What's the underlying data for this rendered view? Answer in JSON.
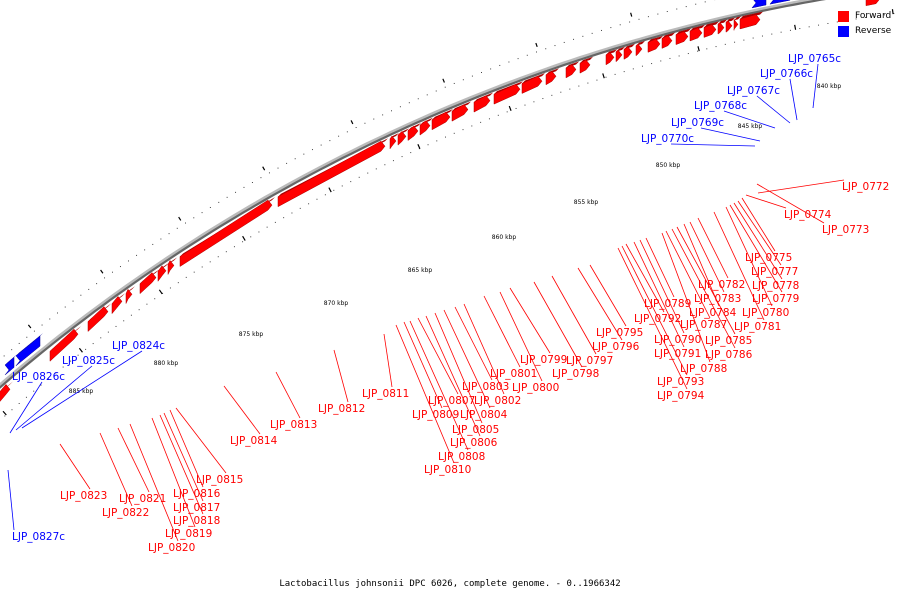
{
  "legend": {
    "forward_label": "Forward",
    "forward_color": "#ff0000",
    "reverse_label": "Reverse",
    "reverse_color": "#0000ff"
  },
  "caption": "Lactobacillus johnsonii DPC 6026, complete genome. - 0..1966342",
  "axis": {
    "tick_labels": [
      "840 kbp",
      "845 kbp",
      "850 kbp",
      "855 kbp",
      "860 kbp",
      "865 kbp",
      "870 kbp",
      "875 kbp",
      "880 kbp",
      "885 kbp"
    ]
  },
  "genes": [
    {
      "label": "LJP_0765c",
      "strand": "reverse"
    },
    {
      "label": "LJP_0766c",
      "strand": "reverse"
    },
    {
      "label": "LJP_0767c",
      "strand": "reverse"
    },
    {
      "label": "LJP_0768c",
      "strand": "reverse"
    },
    {
      "label": "LJP_0769c",
      "strand": "reverse"
    },
    {
      "label": "LJP_0770c",
      "strand": "reverse"
    },
    {
      "label": "LJP_0772",
      "strand": "forward"
    },
    {
      "label": "LJP_0773",
      "strand": "forward"
    },
    {
      "label": "LJP_0774",
      "strand": "forward"
    },
    {
      "label": "LJP_0775",
      "strand": "forward"
    },
    {
      "label": "LJP_0777",
      "strand": "forward"
    },
    {
      "label": "LJP_0778",
      "strand": "forward"
    },
    {
      "label": "LJP_0779",
      "strand": "forward"
    },
    {
      "label": "LJP_0780",
      "strand": "forward"
    },
    {
      "label": "LJP_0781",
      "strand": "forward"
    },
    {
      "label": "LJP_0782",
      "strand": "forward"
    },
    {
      "label": "LJP_0783",
      "strand": "forward"
    },
    {
      "label": "LJP_0784",
      "strand": "forward"
    },
    {
      "label": "LJP_0785",
      "strand": "forward"
    },
    {
      "label": "LJP_0786",
      "strand": "forward"
    },
    {
      "label": "LJP_0787",
      "strand": "forward"
    },
    {
      "label": "LJP_0788",
      "strand": "forward"
    },
    {
      "label": "LJP_0789",
      "strand": "forward"
    },
    {
      "label": "LJP_0790",
      "strand": "forward"
    },
    {
      "label": "LJP_0791",
      "strand": "forward"
    },
    {
      "label": "LJP_0792",
      "strand": "forward"
    },
    {
      "label": "LJP_0793",
      "strand": "forward"
    },
    {
      "label": "LJP_0794",
      "strand": "forward"
    },
    {
      "label": "LJP_0795",
      "strand": "forward"
    },
    {
      "label": "LJP_0796",
      "strand": "forward"
    },
    {
      "label": "LJP_0797",
      "strand": "forward"
    },
    {
      "label": "LJP_0798",
      "strand": "forward"
    },
    {
      "label": "LJP_0799",
      "strand": "forward"
    },
    {
      "label": "LJP_0800",
      "strand": "forward"
    },
    {
      "label": "LJP_0801",
      "strand": "forward"
    },
    {
      "label": "LJP_0802",
      "strand": "forward"
    },
    {
      "label": "LJP_0803",
      "strand": "forward"
    },
    {
      "label": "LJP_0804",
      "strand": "forward"
    },
    {
      "label": "LJP_0805",
      "strand": "forward"
    },
    {
      "label": "LJP_0806",
      "strand": "forward"
    },
    {
      "label": "LJP_0807",
      "strand": "forward"
    },
    {
      "label": "LJP_0808",
      "strand": "forward"
    },
    {
      "label": "LJP_0809",
      "strand": "forward"
    },
    {
      "label": "LJP_0810",
      "strand": "forward"
    },
    {
      "label": "LJP_0811",
      "strand": "forward"
    },
    {
      "label": "LJP_0812",
      "strand": "forward"
    },
    {
      "label": "LJP_0813",
      "strand": "forward"
    },
    {
      "label": "LJP_0814",
      "strand": "forward"
    },
    {
      "label": "LJP_0815",
      "strand": "forward"
    },
    {
      "label": "LJP_0816",
      "strand": "forward"
    },
    {
      "label": "LJP_0817",
      "strand": "forward"
    },
    {
      "label": "LJP_0818",
      "strand": "forward"
    },
    {
      "label": "LJP_0819",
      "strand": "forward"
    },
    {
      "label": "LJP_0820",
      "strand": "forward"
    },
    {
      "label": "LJP_0821",
      "strand": "forward"
    },
    {
      "label": "LJP_0822",
      "strand": "forward"
    },
    {
      "label": "LJP_0823",
      "strand": "forward"
    },
    {
      "label": "LJP_0824c",
      "strand": "reverse"
    },
    {
      "label": "LJP_0825c",
      "strand": "reverse"
    },
    {
      "label": "LJP_0826c",
      "strand": "reverse"
    },
    {
      "label": "LJP_0827c",
      "strand": "reverse"
    }
  ]
}
